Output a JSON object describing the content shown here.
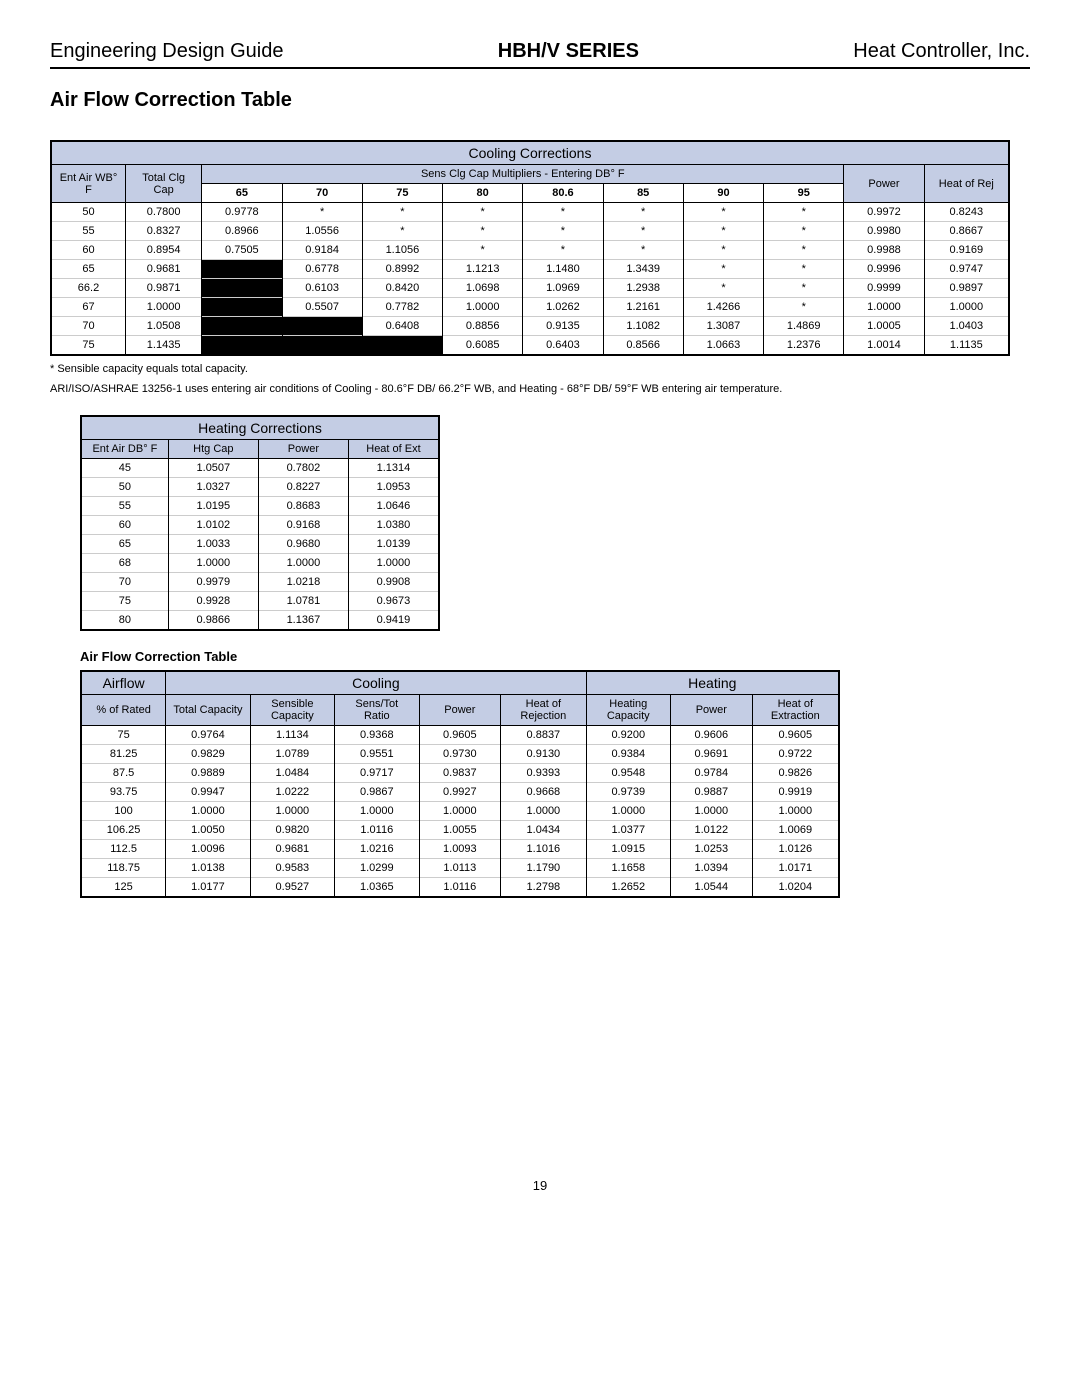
{
  "header": {
    "left": "Engineering Design Guide",
    "center": "HBH/V SERIES",
    "right": "Heat Controller, Inc."
  },
  "section_title": "Air Flow Correction Table",
  "cooling": {
    "title": "Cooling Corrections",
    "col_entair": "Ent Air WB° F",
    "col_totalclg": "Total Clg Cap",
    "col_sens": "Sens Clg Cap Multipliers - Entering DB° F",
    "col_power": "Power",
    "col_hor": "Heat of Rej",
    "db_cols": [
      "65",
      "70",
      "75",
      "80",
      "80.6",
      "85",
      "90",
      "95"
    ],
    "rows": [
      {
        "wb": "50",
        "tc": "0.7800",
        "v": [
          "0.9778",
          "*",
          "*",
          "*",
          "*",
          "*",
          "*",
          "*"
        ],
        "p": "0.9972",
        "h": "0.8243"
      },
      {
        "wb": "55",
        "tc": "0.8327",
        "v": [
          "0.8966",
          "1.0556",
          "*",
          "*",
          "*",
          "*",
          "*",
          "*"
        ],
        "p": "0.9980",
        "h": "0.8667"
      },
      {
        "wb": "60",
        "tc": "0.8954",
        "v": [
          "0.7505",
          "0.9184",
          "1.1056",
          "*",
          "*",
          "*",
          "*",
          "*"
        ],
        "p": "0.9988",
        "h": "0.9169"
      },
      {
        "wb": "65",
        "tc": "0.9681",
        "v": [
          "",
          "0.6778",
          "0.8992",
          "1.1213",
          "1.1480",
          "1.3439",
          "*",
          "*"
        ],
        "p": "0.9996",
        "h": "0.9747",
        "blk": [
          0
        ]
      },
      {
        "wb": "66.2",
        "tc": "0.9871",
        "v": [
          "",
          "0.6103",
          "0.8420",
          "1.0698",
          "1.0969",
          "1.2938",
          "*",
          "*"
        ],
        "p": "0.9999",
        "h": "0.9897",
        "blk": [
          0
        ]
      },
      {
        "wb": "67",
        "tc": "1.0000",
        "v": [
          "",
          "0.5507",
          "0.7782",
          "1.0000",
          "1.0262",
          "1.2161",
          "1.4266",
          "*"
        ],
        "p": "1.0000",
        "h": "1.0000",
        "blk": [
          0
        ]
      },
      {
        "wb": "70",
        "tc": "1.0508",
        "v": [
          "",
          "",
          "0.6408",
          "0.8856",
          "0.9135",
          "1.1082",
          "1.3087",
          "1.4869"
        ],
        "p": "1.0005",
        "h": "1.0403",
        "blk": [
          0,
          1
        ]
      },
      {
        "wb": "75",
        "tc": "1.1435",
        "v": [
          "",
          "",
          "",
          "0.6085",
          "0.6403",
          "0.8566",
          "1.0663",
          "1.2376"
        ],
        "p": "1.0014",
        "h": "1.1135",
        "blk": [
          0,
          1,
          2
        ]
      }
    ]
  },
  "footnote1": "*  Sensible capacity equals total capacity.",
  "footnote2": "ARI/ISO/ASHRAE 13256-1 uses entering air conditions of Cooling - 80.6°F DB/ 66.2°F WB, and Heating - 68°F DB/ 59°F WB entering air temperature.",
  "heating": {
    "title": "Heating Corrections",
    "cols": [
      "Ent Air DB° F",
      "Htg Cap",
      "Power",
      "Heat of Ext"
    ],
    "rows": [
      [
        "45",
        "1.0507",
        "0.7802",
        "1.1314"
      ],
      [
        "50",
        "1.0327",
        "0.8227",
        "1.0953"
      ],
      [
        "55",
        "1.0195",
        "0.8683",
        "1.0646"
      ],
      [
        "60",
        "1.0102",
        "0.9168",
        "1.0380"
      ],
      [
        "65",
        "1.0033",
        "0.9680",
        "1.0139"
      ],
      [
        "68",
        "1.0000",
        "1.0000",
        "1.0000"
      ],
      [
        "70",
        "0.9979",
        "1.0218",
        "0.9908"
      ],
      [
        "75",
        "0.9928",
        "1.0781",
        "0.9673"
      ],
      [
        "80",
        "0.9866",
        "1.1367",
        "0.9419"
      ]
    ]
  },
  "airflow_title": "Air Flow Correction Table",
  "airflow": {
    "hdr_airflow": "Airflow",
    "hdr_cooling": "Cooling",
    "hdr_heating": "Heating",
    "cols": [
      "% of Rated",
      "Total Capacity",
      "Sensible Capacity",
      "Sens/Tot Ratio",
      "Power",
      "Heat of Rejection",
      "Heating Capacity",
      "Power",
      "Heat of Extraction"
    ],
    "rows": [
      [
        "75",
        "0.9764",
        "1.1134",
        "0.9368",
        "0.9605",
        "0.8837",
        "0.9200",
        "0.9606",
        "0.9605"
      ],
      [
        "81.25",
        "0.9829",
        "1.0789",
        "0.9551",
        "0.9730",
        "0.9130",
        "0.9384",
        "0.9691",
        "0.9722"
      ],
      [
        "87.5",
        "0.9889",
        "1.0484",
        "0.9717",
        "0.9837",
        "0.9393",
        "0.9548",
        "0.9784",
        "0.9826"
      ],
      [
        "93.75",
        "0.9947",
        "1.0222",
        "0.9867",
        "0.9927",
        "0.9668",
        "0.9739",
        "0.9887",
        "0.9919"
      ],
      [
        "100",
        "1.0000",
        "1.0000",
        "1.0000",
        "1.0000",
        "1.0000",
        "1.0000",
        "1.0000",
        "1.0000"
      ],
      [
        "106.25",
        "1.0050",
        "0.9820",
        "1.0116",
        "1.0055",
        "1.0434",
        "1.0377",
        "1.0122",
        "1.0069"
      ],
      [
        "112.5",
        "1.0096",
        "0.9681",
        "1.0216",
        "1.0093",
        "1.1016",
        "1.0915",
        "1.0253",
        "1.0126"
      ],
      [
        "118.75",
        "1.0138",
        "0.9583",
        "1.0299",
        "1.0113",
        "1.1790",
        "1.1658",
        "1.0394",
        "1.0171"
      ],
      [
        "125",
        "1.0177",
        "0.9527",
        "1.0365",
        "1.0116",
        "1.2798",
        "1.2652",
        "1.0544",
        "1.0204"
      ]
    ]
  },
  "page": "19"
}
